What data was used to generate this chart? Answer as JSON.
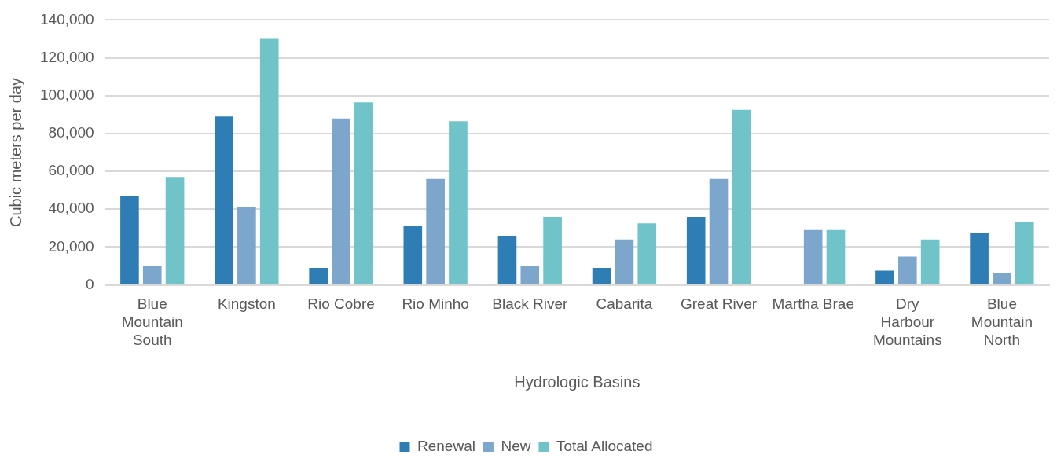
{
  "chart_data": {
    "type": "bar",
    "xlabel": "Hydrologic Basins",
    "ylabel": "Cubic meters per day",
    "categories": [
      "Blue Mountain South",
      "Kingston",
      "Rio Cobre",
      "Rio Minho",
      "Black River",
      "Cabarita",
      "Great River",
      "Martha Brae",
      "Dry Harbour Mountains",
      "Blue Mountain North"
    ],
    "series": [
      {
        "name": "Renewal",
        "color": "#2e7eb5",
        "values": [
          47000,
          89000,
          9000,
          31000,
          26000,
          9000,
          36000,
          null,
          7500,
          27500
        ]
      },
      {
        "name": "New",
        "color": "#7da6cc",
        "values": [
          10000,
          41000,
          88000,
          56000,
          10000,
          24000,
          56000,
          29000,
          15000,
          6500
        ]
      },
      {
        "name": "Total Allocated",
        "color": "#6fc3c9",
        "values": [
          57000,
          130000,
          96500,
          86500,
          36000,
          32500,
          92500,
          29000,
          24000,
          33500
        ]
      }
    ],
    "ylim": [
      0,
      140000
    ],
    "yticks": [
      0,
      {
        "value": 20000,
        "label": "20,000"
      },
      {
        "value": 40000,
        "label": "40,000"
      },
      {
        "value": 60000,
        "label": "60,000"
      },
      {
        "value": 80000,
        "label": "80,000"
      },
      {
        "value": 100000,
        "label": "100,000"
      },
      {
        "value": 120000,
        "label": "120,000"
      },
      {
        "value": 140000,
        "label": "140,000"
      }
    ],
    "grid": "y",
    "legend": "bottom"
  }
}
